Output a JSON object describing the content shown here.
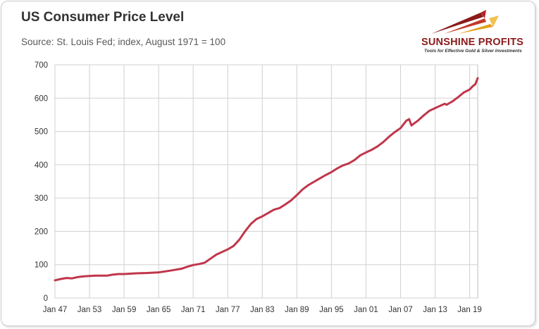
{
  "header": {
    "title": "US Consumer Price Level",
    "subtitle": "Source: St. Louis Fed; index, August 1971 = 100"
  },
  "logo": {
    "name": "SUNSHINE PROFITS",
    "tagline": "Tools for Effective Gold & Silver Investments"
  },
  "colors": {
    "line": "#c0364b",
    "grid": "#d0d0d0",
    "plot_bg": "#ffffff"
  },
  "chart_data": {
    "type": "line",
    "title": "US Consumer Price Level",
    "subtitle": "Source: St. Louis Fed; index, August 1971 = 100",
    "xlabel": "",
    "ylabel": "",
    "xlim": [
      1947.0,
      2020.4
    ],
    "ylim": [
      0,
      700
    ],
    "yticks": [
      0,
      100,
      200,
      300,
      400,
      500,
      600,
      700
    ],
    "xticks": [
      {
        "label": "Jan 47",
        "x": 1947
      },
      {
        "label": "Jan 53",
        "x": 1953
      },
      {
        "label": "Jan 59",
        "x": 1959
      },
      {
        "label": "Jan 65",
        "x": 1965
      },
      {
        "label": "Jan 71",
        "x": 1971
      },
      {
        "label": "Jan 77",
        "x": 1977
      },
      {
        "label": "Jan 83",
        "x": 1983
      },
      {
        "label": "Jan 89",
        "x": 1989
      },
      {
        "label": "Jan 95",
        "x": 1995
      },
      {
        "label": "Jan 01",
        "x": 2001
      },
      {
        "label": "Jan 07",
        "x": 2007
      },
      {
        "label": "Jan 13",
        "x": 2013
      },
      {
        "label": "Jan 19",
        "x": 2019
      }
    ],
    "grid": true,
    "series": [
      {
        "name": "US Consumer Price Level",
        "x": [
          1947,
          1948,
          1949,
          1950,
          1951,
          1952,
          1953,
          1954,
          1956,
          1957,
          1958,
          1959,
          1961,
          1963,
          1965,
          1967,
          1969,
          1970,
          1971,
          1972,
          1973,
          1974,
          1975,
          1976,
          1977,
          1978,
          1979,
          1980,
          1981,
          1982,
          1983,
          1984,
          1985,
          1986,
          1987,
          1988,
          1989,
          1990,
          1991,
          1992,
          1993,
          1994,
          1995,
          1996,
          1997,
          1998,
          1999,
          2000,
          2001,
          2002,
          2003,
          2004,
          2005,
          2006,
          2007,
          2008,
          2008.5,
          2008.9,
          2009.5,
          2010,
          2011,
          2012,
          2013,
          2014,
          2014.7,
          2015,
          2016,
          2017,
          2018,
          2019,
          2019.5,
          2020,
          2020.4
        ],
        "values": [
          53,
          57,
          60,
          59,
          63,
          65,
          66,
          67,
          67,
          70,
          72,
          72,
          74,
          75,
          77,
          82,
          88,
          94,
          99,
          102,
          106,
          118,
          130,
          138,
          146,
          156,
          175,
          200,
          222,
          237,
          245,
          255,
          265,
          270,
          281,
          293,
          309,
          326,
          339,
          349,
          359,
          369,
          378,
          389,
          398,
          404,
          414,
          428,
          437,
          445,
          455,
          468,
          484,
          498,
          510,
          532,
          537,
          518,
          526,
          532,
          548,
          562,
          570,
          578,
          583,
          580,
          590,
          603,
          617,
          626,
          635,
          642,
          660
        ]
      }
    ]
  }
}
